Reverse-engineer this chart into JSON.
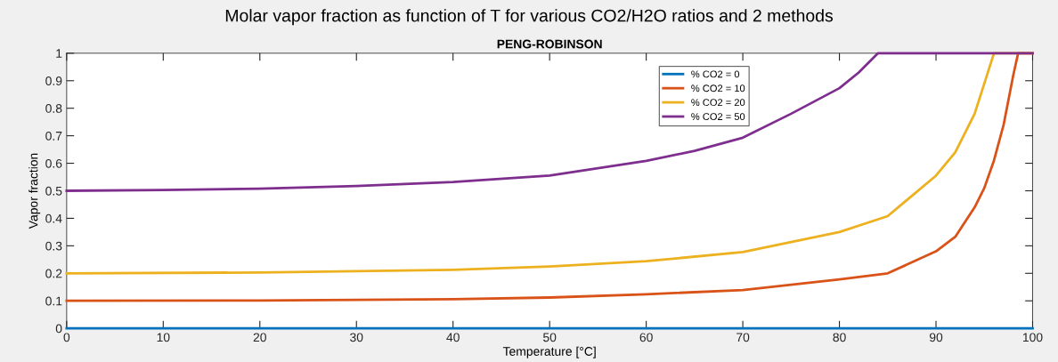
{
  "chart_data": {
    "type": "line",
    "title": "Molar vapor fraction as function of T for various CO2/H2O ratios and 2 methods",
    "subtitle": "PENG-ROBINSON",
    "xlabel": "Temperature [°C]",
    "ylabel": "Vapor fraction",
    "xlim": [
      0,
      100
    ],
    "xticks": [
      0,
      10,
      20,
      30,
      40,
      50,
      60,
      70,
      80,
      90,
      100
    ],
    "ylim": [
      0,
      1
    ],
    "yticks": [
      0,
      0.1,
      0.2,
      0.3,
      0.4,
      0.5,
      0.6,
      0.7,
      0.8,
      0.9,
      1
    ],
    "grid": false,
    "legend": "top",
    "marker": "none",
    "line_style": "solid",
    "series": [
      {
        "name": "% CO2 = 0",
        "color": "#0072bd",
        "x": [
          0,
          100
        ],
        "values": [
          0,
          0
        ]
      },
      {
        "name": "% CO2 = 10",
        "color": "#d95319",
        "x": [
          0,
          20,
          40,
          50,
          60,
          70,
          80,
          85,
          90,
          92,
          94,
          95,
          96,
          97,
          98,
          98.5,
          100
        ],
        "values": [
          0.1,
          0.101,
          0.106,
          0.112,
          0.124,
          0.139,
          0.178,
          0.2,
          0.28,
          0.333,
          0.44,
          0.51,
          0.61,
          0.74,
          0.92,
          1,
          1
        ]
      },
      {
        "name": "% CO2 = 20",
        "color": "#edb120",
        "x": [
          0,
          20,
          40,
          50,
          60,
          70,
          80,
          85,
          90,
          92,
          94,
          96,
          100
        ],
        "values": [
          0.2,
          0.203,
          0.213,
          0.225,
          0.244,
          0.277,
          0.35,
          0.408,
          0.555,
          0.64,
          0.78,
          1,
          1
        ]
      },
      {
        "name": "% CO2 = 50",
        "color": "#7e2f8e",
        "x": [
          0,
          10,
          20,
          30,
          40,
          50,
          60,
          65,
          70,
          75,
          80,
          82,
          84,
          100
        ],
        "values": [
          0.5,
          0.503,
          0.508,
          0.517,
          0.532,
          0.555,
          0.609,
          0.645,
          0.693,
          0.78,
          0.873,
          0.93,
          1,
          1
        ]
      }
    ]
  }
}
